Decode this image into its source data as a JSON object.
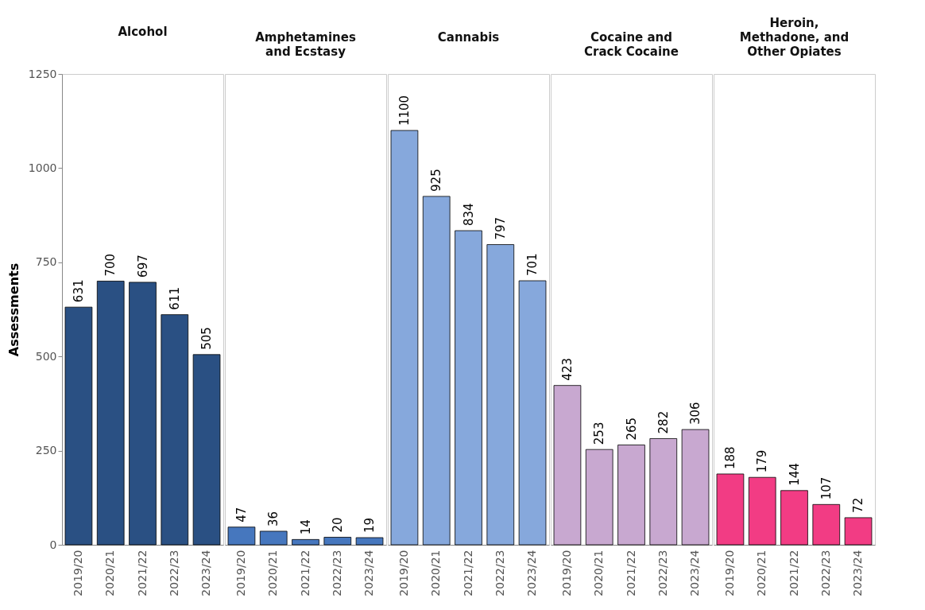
{
  "chart_data": [
    {
      "type": "bar",
      "title": "Alcohol",
      "ylabel": "Assessments",
      "categories": [
        "2019/20",
        "2020/21",
        "2021/22",
        "2022/23",
        "2023/24"
      ],
      "values": [
        631,
        700,
        697,
        611,
        505
      ],
      "color": "#2a5083",
      "ylim": [
        0,
        1250
      ],
      "yticks": [
        0,
        250,
        500,
        750,
        1000,
        1250
      ],
      "data_labels": true
    },
    {
      "type": "bar",
      "title": "Amphetamines and Ecstasy",
      "categories": [
        "2019/20",
        "2020/21",
        "2021/22",
        "2022/23",
        "2023/24"
      ],
      "values": [
        47,
        36,
        14,
        20,
        19
      ],
      "color": "#4677be",
      "ylim": [
        0,
        1250
      ],
      "tick_labels": "x",
      "data_labels": true
    },
    {
      "type": "bar",
      "title": "Cannabis",
      "categories": [
        "2019/20",
        "2020/21",
        "2021/22",
        "2022/23",
        "2023/24"
      ],
      "values": [
        1100,
        925,
        834,
        797,
        701
      ],
      "color": "#86a8dc",
      "ylim": [
        0,
        1250
      ],
      "tick_labels": "x",
      "data_labels": true
    },
    {
      "type": "bar",
      "title": "Cocaine and Crack Cocaine",
      "categories": [
        "2019/20",
        "2020/21",
        "2021/22",
        "2022/23",
        "2023/24"
      ],
      "values": [
        423,
        253,
        265,
        282,
        306
      ],
      "color": "#c8a8d0",
      "ylim": [
        0,
        1250
      ],
      "tick_labels": "x",
      "data_labels": true
    },
    {
      "type": "bar",
      "title": "Heroin, Methadone, and Other Opiates",
      "categories": [
        "2019/20",
        "2020/21",
        "2021/22",
        "2022/23",
        "2023/24"
      ],
      "values": [
        188,
        179,
        144,
        107,
        72
      ],
      "color": "#f23c84",
      "ylim": [
        0,
        1250
      ],
      "tick_labels": "x",
      "data_labels": true
    }
  ]
}
